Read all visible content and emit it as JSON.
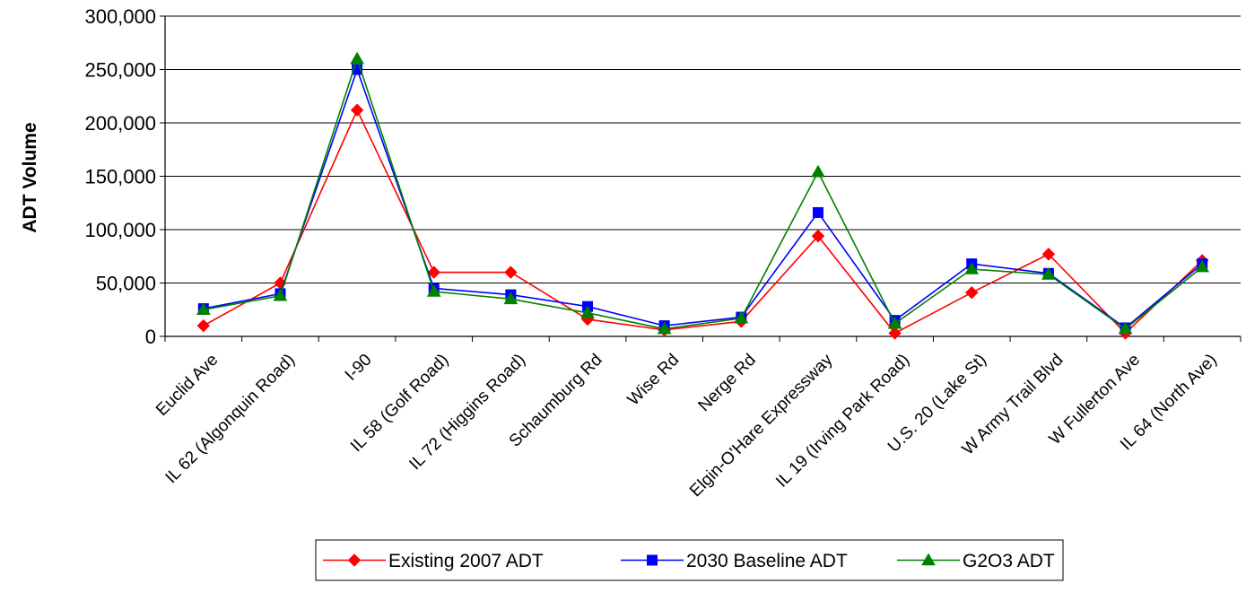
{
  "chart_data": {
    "type": "line",
    "title": "",
    "xlabel": "",
    "ylabel": "ADT Volume",
    "ylim": [
      0,
      300000
    ],
    "yticks": [
      0,
      50000,
      100000,
      150000,
      200000,
      250000,
      300000
    ],
    "ytick_labels": [
      "0",
      "50,000",
      "100,000",
      "150,000",
      "200,000",
      "250,000",
      "300,000"
    ],
    "grid": "horizontal",
    "legend_position": "bottom",
    "categories": [
      "Euclid Ave",
      "IL 62 (Algonquin Road)",
      "I-90",
      "IL 58 (Golf Road)",
      "IL 72 (Higgins Road)",
      "Schaumburg Rd",
      "Wise Rd",
      "Nerge Rd",
      "Elgin-O'Hare Expressway",
      "IL 19 (Irving Park Road)",
      "U.S. 20 (Lake St)",
      "W Army Trail Blvd",
      "W Fullerton Ave",
      "IL 64 (North Ave)"
    ],
    "series": [
      {
        "name": "Existing 2007 ADT",
        "color": "#ff0000",
        "marker": "diamond",
        "values": [
          10000,
          50000,
          212000,
          60000,
          60000,
          16000,
          6000,
          14000,
          94000,
          3000,
          41000,
          77000,
          3000,
          71000
        ]
      },
      {
        "name": "2030 Baseline ADT",
        "color": "#0000ff",
        "marker": "square",
        "values": [
          26000,
          40000,
          250000,
          45000,
          39000,
          28000,
          10000,
          18000,
          116000,
          15000,
          68000,
          59000,
          8000,
          68000
        ]
      },
      {
        "name": "G2O3 ADT",
        "color": "#008000",
        "marker": "triangle",
        "values": [
          25000,
          38000,
          260000,
          42000,
          35000,
          22000,
          7000,
          17000,
          154000,
          12000,
          63000,
          58000,
          7000,
          65000
        ]
      }
    ]
  }
}
